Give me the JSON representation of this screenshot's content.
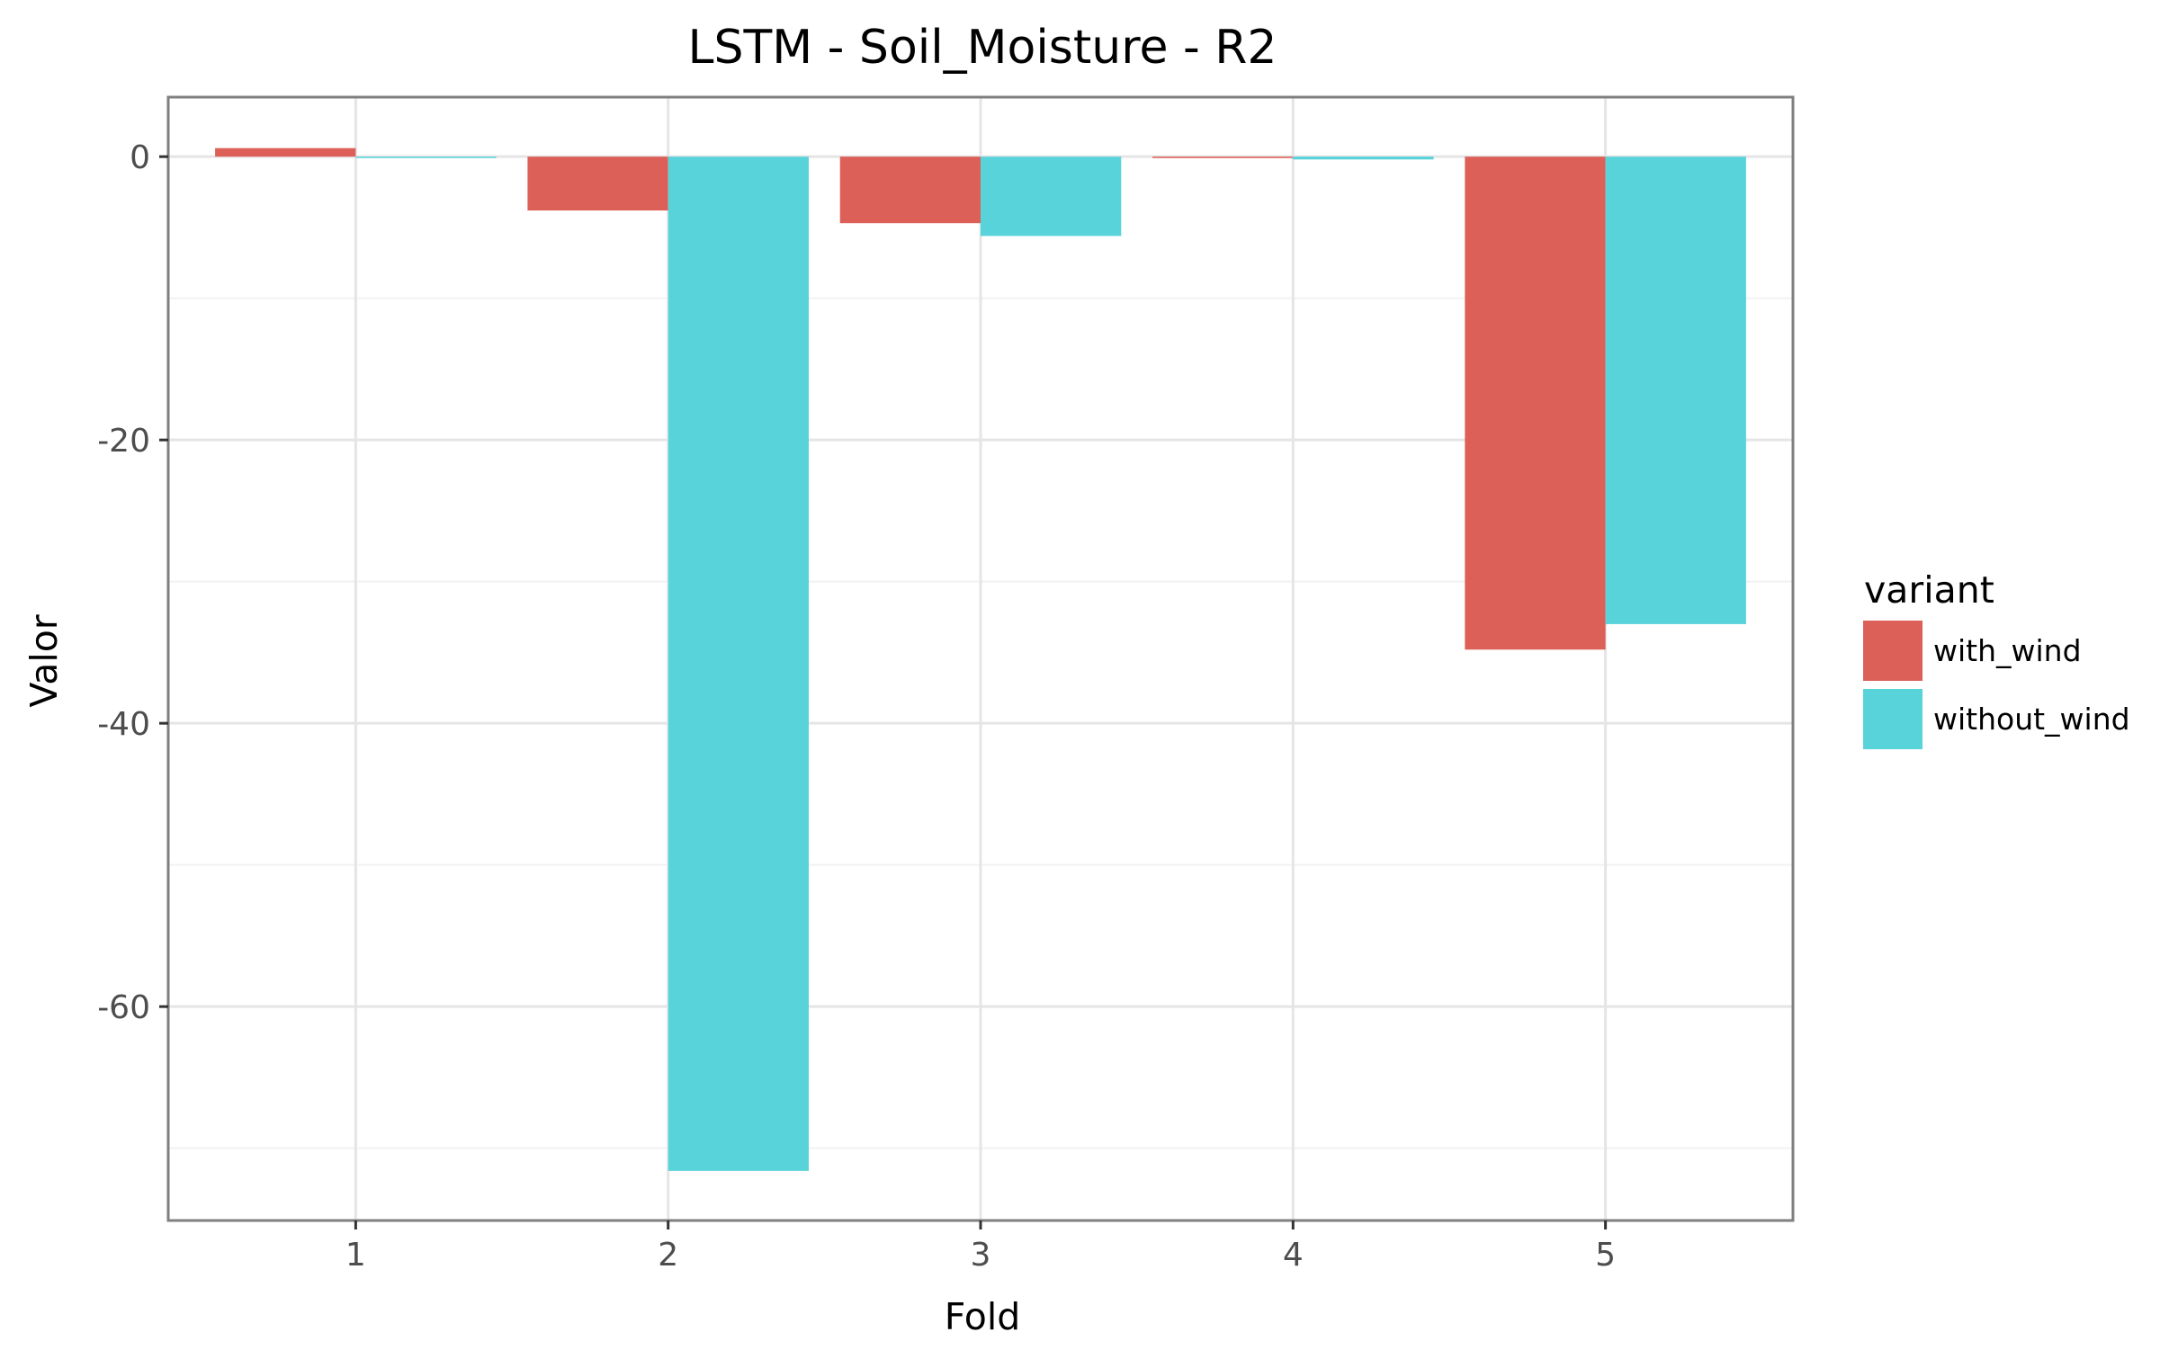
{
  "chart_data": {
    "type": "bar",
    "title": "LSTM - Soil_Moisture - R2",
    "xlabel": "Fold",
    "ylabel": "Valor",
    "categories": [
      "1",
      "2",
      "3",
      "4",
      "5"
    ],
    "series": [
      {
        "name": "with_wind",
        "color": "#dc6058",
        "values": [
          0.6,
          -3.8,
          -4.7,
          -0.1,
          -34.8
        ]
      },
      {
        "name": "without_wind",
        "color": "#59d3da",
        "values": [
          -0.1,
          -71.6,
          -5.6,
          -0.2,
          -33.0
        ]
      }
    ],
    "ylim": [
      -75.1,
      4.2
    ],
    "yticks": [
      0,
      -20,
      -40,
      -60
    ],
    "ytick_labels": [
      "0",
      "-20",
      "-40",
      "-60"
    ],
    "legend": {
      "title": "variant",
      "position": "right"
    },
    "grid": true
  }
}
